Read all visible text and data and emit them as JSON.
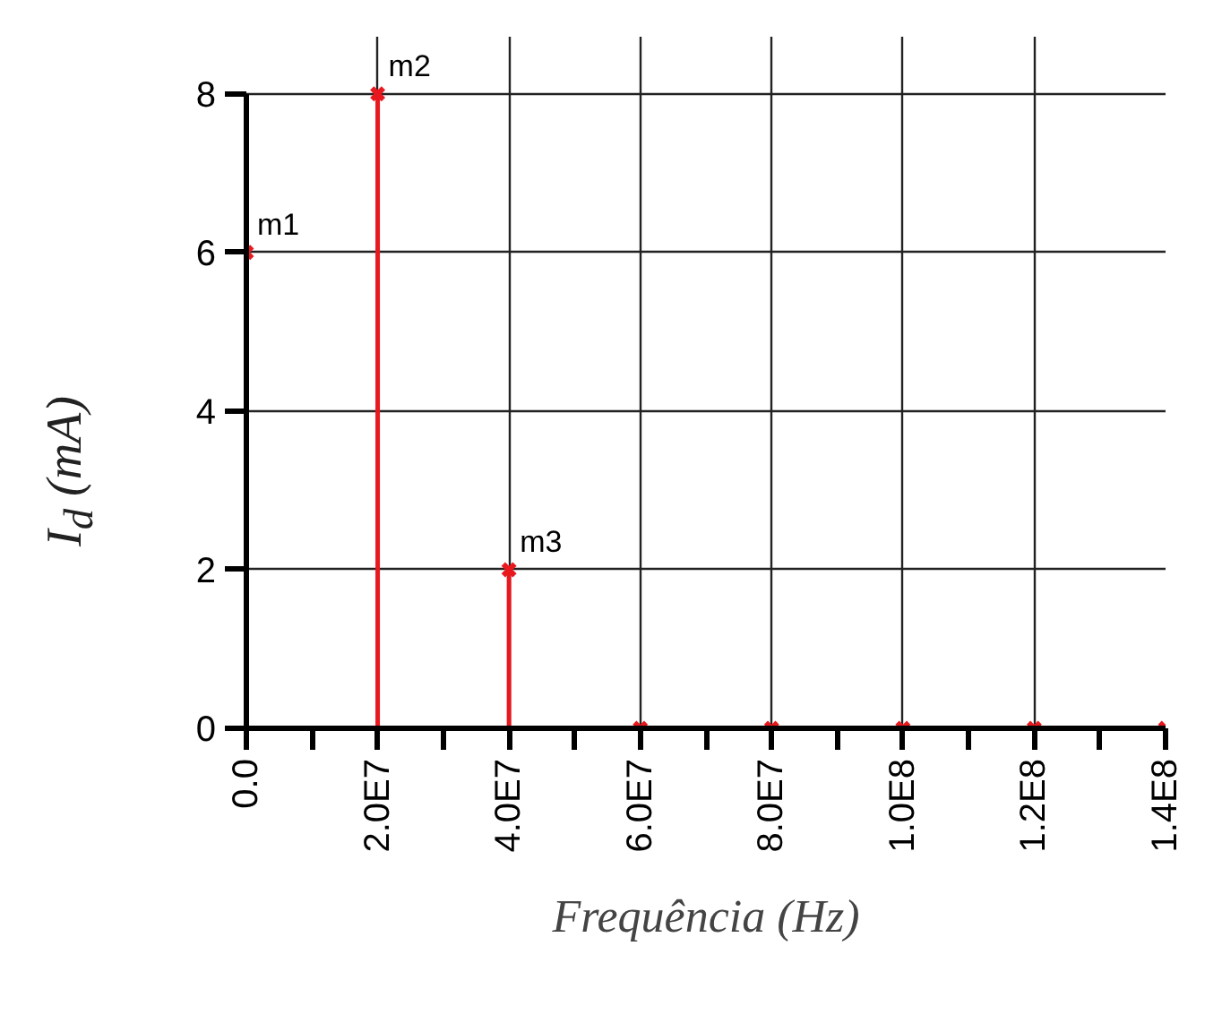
{
  "chart_data": {
    "type": "lollipop",
    "xlabel": "Frequência (Hz)",
    "ylabel": "I$_{d}$ (mA)",
    "x": [
      0,
      20000000,
      40000000,
      60000000,
      80000000,
      100000000,
      120000000,
      140000000
    ],
    "values": [
      6,
      8,
      2,
      0,
      0,
      0,
      0,
      0
    ],
    "color": "#e8191e",
    "marker": "cross",
    "xlim": [
      0,
      140000000
    ],
    "ylim": [
      0,
      8
    ],
    "xticks": [
      {
        "value": 0,
        "label": "0.0"
      },
      {
        "value": 20000000,
        "label": "2.0E7"
      },
      {
        "value": 40000000,
        "label": "4.0E7"
      },
      {
        "value": 60000000,
        "label": "6.0E7"
      },
      {
        "value": 80000000,
        "label": "8.0E7"
      },
      {
        "value": 100000000,
        "label": "1.0E8"
      },
      {
        "value": 120000000,
        "label": "1.2E8"
      },
      {
        "value": 140000000,
        "label": "1.4E8"
      }
    ],
    "yticks": [
      0,
      2,
      4,
      6,
      8
    ],
    "grid": true,
    "annotations": [
      {
        "text": "m1",
        "x": 0,
        "y": 6
      },
      {
        "text": "m2",
        "x": 20000000,
        "y": 8
      },
      {
        "text": "m3",
        "x": 40000000,
        "y": 2
      }
    ]
  }
}
